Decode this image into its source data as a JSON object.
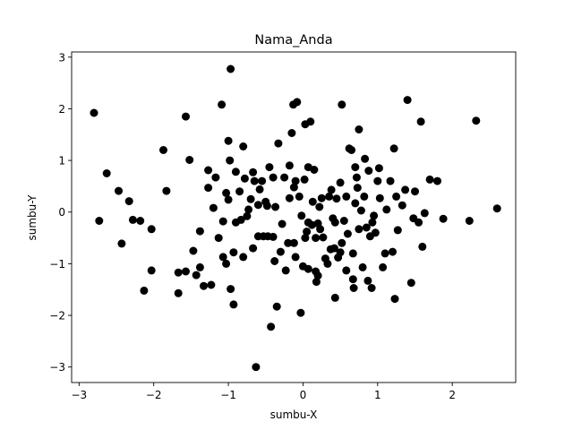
{
  "chart_data": {
    "type": "scatter",
    "title": "Nama_Anda",
    "xlabel": "sumbu-X",
    "ylabel": "sumbu-Y",
    "xlim": [
      -3.1,
      2.85
    ],
    "ylim": [
      -3.3,
      3.1
    ],
    "xticks": [
      -3,
      -2,
      -1,
      0,
      1,
      2
    ],
    "yticks": [
      -3,
      -2,
      -1,
      0,
      1,
      2,
      3
    ],
    "xtick_labels": [
      "−3",
      "−2",
      "−1",
      "0",
      "1",
      "2"
    ],
    "ytick_labels": [
      "−3",
      "−2",
      "−1",
      "0",
      "1",
      "2",
      "3"
    ],
    "grid": false,
    "marker_color": "#000000",
    "series": [
      {
        "points": [
          [
            -2.8,
            1.92
          ],
          [
            -2.73,
            -0.17
          ],
          [
            -2.63,
            0.75
          ],
          [
            -2.47,
            0.41
          ],
          [
            -2.43,
            -0.61
          ],
          [
            -2.33,
            0.21
          ],
          [
            -2.28,
            -0.15
          ],
          [
            -2.13,
            -1.52
          ],
          [
            -2.18,
            -0.17
          ],
          [
            -2.03,
            -0.33
          ],
          [
            -2.03,
            -1.13
          ],
          [
            -1.87,
            1.2
          ],
          [
            -1.83,
            0.41
          ],
          [
            -1.67,
            -1.17
          ],
          [
            -1.67,
            -1.57
          ],
          [
            -1.57,
            1.85
          ],
          [
            -1.57,
            -1.15
          ],
          [
            -1.52,
            1.01
          ],
          [
            -1.47,
            -0.75
          ],
          [
            -1.43,
            -1.22
          ],
          [
            -1.38,
            -1.07
          ],
          [
            -1.38,
            -0.37
          ],
          [
            -1.33,
            -1.43
          ],
          [
            -1.27,
            0.81
          ],
          [
            -1.27,
            0.47
          ],
          [
            -1.23,
            -1.41
          ],
          [
            -1.2,
            0.08
          ],
          [
            -1.17,
            0.67
          ],
          [
            -1.13,
            -0.5
          ],
          [
            -1.09,
            2.08
          ],
          [
            -1.07,
            -0.87
          ],
          [
            -1.07,
            -0.18
          ],
          [
            -1.03,
            0.37
          ],
          [
            -1.03,
            -1.0
          ],
          [
            -1.0,
            0.24
          ],
          [
            -1.0,
            1.38
          ],
          [
            -0.98,
            1.0
          ],
          [
            -0.97,
            2.77
          ],
          [
            -0.93,
            -0.78
          ],
          [
            -0.93,
            -1.79
          ],
          [
            -0.97,
            -1.49
          ],
          [
            -0.9,
            0.78
          ],
          [
            -0.9,
            -0.2
          ],
          [
            -0.85,
            0.4
          ],
          [
            -0.83,
            -0.15
          ],
          [
            -0.8,
            1.27
          ],
          [
            -0.8,
            -0.87
          ],
          [
            -0.78,
            0.65
          ],
          [
            -0.75,
            -0.08
          ],
          [
            -0.73,
            0.05
          ],
          [
            -0.7,
            0.25
          ],
          [
            -0.67,
            -0.7
          ],
          [
            -0.67,
            0.77
          ],
          [
            -0.65,
            0.6
          ],
          [
            -0.63,
            -3.0
          ],
          [
            -0.6,
            0.14
          ],
          [
            -0.6,
            -0.47
          ],
          [
            -0.58,
            0.44
          ],
          [
            -0.55,
            0.6
          ],
          [
            -0.53,
            -0.47
          ],
          [
            -0.5,
            0.2
          ],
          [
            -0.48,
            0.12
          ],
          [
            -0.47,
            -0.47
          ],
          [
            -0.45,
            0.87
          ],
          [
            -0.43,
            -2.22
          ],
          [
            -0.4,
            0.67
          ],
          [
            -0.4,
            -0.48
          ],
          [
            -0.38,
            -0.95
          ],
          [
            -0.37,
            0.1
          ],
          [
            -0.35,
            -1.83
          ],
          [
            -0.33,
            1.33
          ],
          [
            -0.3,
            -0.77
          ],
          [
            -0.28,
            -0.23
          ],
          [
            -0.25,
            0.67
          ],
          [
            -0.23,
            -1.13
          ],
          [
            -0.2,
            -0.6
          ],
          [
            -0.18,
            0.27
          ],
          [
            -0.18,
            0.9
          ],
          [
            -0.15,
            1.53
          ],
          [
            -0.13,
            2.08
          ],
          [
            -0.12,
            0.48
          ],
          [
            -0.12,
            -0.6
          ],
          [
            -0.1,
            -0.87
          ],
          [
            -0.1,
            0.6
          ],
          [
            -0.08,
            2.13
          ],
          [
            -0.05,
            0.3
          ],
          [
            -0.03,
            -1.95
          ],
          [
            -0.02,
            -0.07
          ],
          [
            0.0,
            -1.05
          ],
          [
            0.02,
            0.63
          ],
          [
            0.03,
            -0.5
          ],
          [
            0.03,
            1.7
          ],
          [
            0.05,
            -0.38
          ],
          [
            0.07,
            -0.2
          ],
          [
            0.07,
            -1.1
          ],
          [
            0.07,
            0.87
          ],
          [
            0.1,
            1.75
          ],
          [
            0.12,
            -0.25
          ],
          [
            0.13,
            0.2
          ],
          [
            0.15,
            0.82
          ],
          [
            0.17,
            -0.5
          ],
          [
            0.17,
            -1.15
          ],
          [
            0.18,
            -1.35
          ],
          [
            0.2,
            -1.23
          ],
          [
            0.2,
            -0.22
          ],
          [
            0.22,
            0.1
          ],
          [
            0.23,
            -0.33
          ],
          [
            0.25,
            0.27
          ],
          [
            0.27,
            -0.49
          ],
          [
            0.3,
            -0.9
          ],
          [
            0.33,
            -1.0
          ],
          [
            0.35,
            0.3
          ],
          [
            0.37,
            -0.72
          ],
          [
            0.38,
            0.43
          ],
          [
            0.4,
            -0.12
          ],
          [
            0.42,
            -0.7
          ],
          [
            0.43,
            -1.66
          ],
          [
            0.43,
            -0.2
          ],
          [
            0.45,
            0.26
          ],
          [
            0.47,
            -0.88
          ],
          [
            0.5,
            0.57
          ],
          [
            0.5,
            -0.78
          ],
          [
            0.52,
            2.08
          ],
          [
            0.52,
            -0.6
          ],
          [
            0.55,
            -0.17
          ],
          [
            0.58,
            -1.13
          ],
          [
            0.58,
            0.3
          ],
          [
            0.6,
            -0.42
          ],
          [
            0.62,
            1.23
          ],
          [
            0.65,
            1.2
          ],
          [
            0.67,
            -0.8
          ],
          [
            0.67,
            -1.3
          ],
          [
            0.68,
            -1.47
          ],
          [
            0.7,
            0.17
          ],
          [
            0.7,
            0.87
          ],
          [
            0.72,
            0.67
          ],
          [
            0.73,
            0.47
          ],
          [
            0.75,
            1.6
          ],
          [
            0.75,
            -0.33
          ],
          [
            0.78,
            0.03
          ],
          [
            0.8,
            -1.07
          ],
          [
            0.82,
            0.3
          ],
          [
            0.83,
            1.03
          ],
          [
            0.85,
            -0.3
          ],
          [
            0.87,
            -1.33
          ],
          [
            0.88,
            0.8
          ],
          [
            0.9,
            -0.47
          ],
          [
            0.92,
            -1.47
          ],
          [
            0.93,
            -0.2
          ],
          [
            0.95,
            -0.07
          ],
          [
            0.97,
            -0.4
          ],
          [
            1.0,
            0.6
          ],
          [
            1.02,
            0.85
          ],
          [
            1.03,
            0.27
          ],
          [
            1.07,
            -1.07
          ],
          [
            1.1,
            -0.8
          ],
          [
            1.12,
            0.05
          ],
          [
            1.17,
            0.6
          ],
          [
            1.2,
            -0.77
          ],
          [
            1.22,
            1.23
          ],
          [
            1.23,
            -1.68
          ],
          [
            1.25,
            0.3
          ],
          [
            1.27,
            -0.35
          ],
          [
            1.33,
            0.13
          ],
          [
            1.37,
            0.43
          ],
          [
            1.4,
            2.17
          ],
          [
            1.45,
            -1.37
          ],
          [
            1.48,
            -0.12
          ],
          [
            1.5,
            0.4
          ],
          [
            1.55,
            -0.2
          ],
          [
            1.58,
            1.75
          ],
          [
            1.6,
            -0.67
          ],
          [
            1.63,
            -0.02
          ],
          [
            1.7,
            0.63
          ],
          [
            1.8,
            0.6
          ],
          [
            1.88,
            -0.13
          ],
          [
            2.23,
            -0.17
          ],
          [
            2.32,
            1.77
          ],
          [
            2.6,
            0.07
          ]
        ]
      }
    ]
  }
}
